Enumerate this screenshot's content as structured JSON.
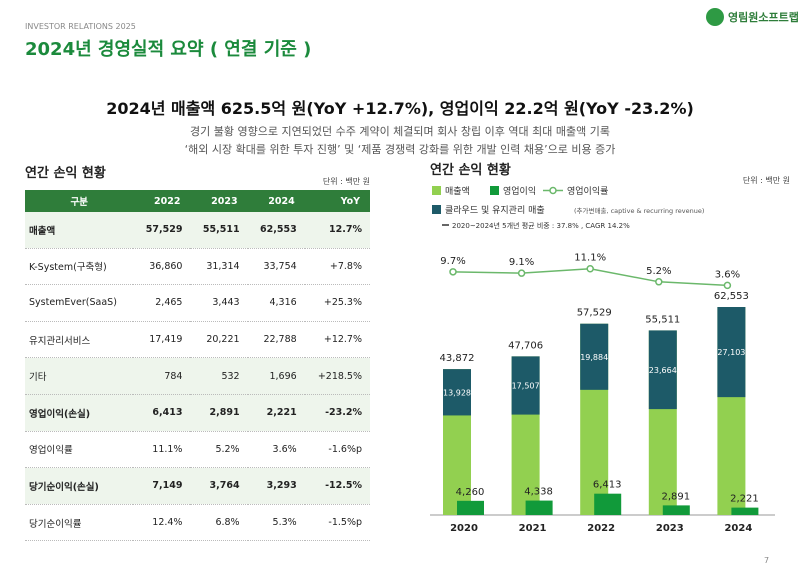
{
  "header": {
    "subtitle": "INVESTOR RELATIONS 2025",
    "title": "2024년 경영실적 요약 ( 연결 기준 )",
    "logo": "영림원소프트랩"
  },
  "summary": {
    "headline": "2024년 매출액 625.5억 원(YoY +12.7%), 영업이익 22.2억 원(YoY -23.2%)",
    "lines": [
      "경기 불황 영향으로 지연되었던 수주 계약이 체결되며 회사 창립 이후 역대 최대 매출액 기록",
      "‘해외 시장 확대를 위한 투자 진행’ 및 ‘제품 경쟁력 강화를 위한 개발 인력 채용’으로 비용 증가"
    ]
  },
  "table": {
    "title": "연간 손익 현황",
    "unit": "단위 : 백만 원",
    "header": [
      "구분",
      "2022",
      "2023",
      "2024",
      "YoY"
    ],
    "rows": [
      [
        "매출액",
        "57,529",
        "55,511",
        "62,553",
        "12.7%"
      ],
      [
        "K-System(구축형)",
        "36,860",
        "31,314",
        "33,754",
        "+7.8%"
      ],
      [
        "SystemEver(SaaS)",
        "2,465",
        "3,443",
        "4,316",
        "+25.3%"
      ],
      [
        "유지관리서비스",
        "17,419",
        "20,221",
        "22,788",
        "+12.7%"
      ],
      [
        "기타",
        "784",
        "532",
        "1,696",
        "+218.5%"
      ],
      [
        "영업이익(손실)",
        "6,413",
        "2,891",
        "2,221",
        "-23.2%"
      ],
      [
        "영업이익률",
        "11.1%",
        "5.2%",
        "3.6%",
        "-1.6%p"
      ],
      [
        "당기순이익(손실)",
        "7,149",
        "3,764",
        "3,293",
        "-12.5%"
      ],
      [
        "당기순이익률",
        "12.4%",
        "6.8%",
        "5.3%",
        "-1.5%p"
      ]
    ]
  },
  "chart_data": {
    "type": "bar",
    "title": "연간 손익 현황",
    "unit": "단위 : 백만 원",
    "categories": [
      "2020",
      "2021",
      "2022",
      "2023",
      "2024"
    ],
    "series": [
      {
        "name": "매출액",
        "color": "#92d050",
        "values": [
          43872,
          47706,
          57529,
          55511,
          62553
        ],
        "value_labels": [
          "43,872",
          "47,706",
          "57,529",
          "55,511",
          "62,553"
        ]
      },
      {
        "name": "영업이익",
        "color": "#119a3a",
        "values": [
          4260,
          4338,
          6413,
          2891,
          2221
        ],
        "value_labels": [
          "4,260",
          "4,338",
          "6,413",
          "2,891",
          "2,221"
        ]
      },
      {
        "name": "영업이익률",
        "color": "#6bb86b",
        "axis": "y2",
        "values": [
          9.7,
          9.1,
          11.1,
          5.2,
          3.6
        ],
        "value_labels": [
          "9.7%",
          "9.1%",
          "11.1%",
          "5.2%",
          "3.6%"
        ]
      },
      {
        "name": "클라우드 및 유지관리 매출",
        "detail": "(추가변매출, captive & recurring revenue)",
        "stat": "2020~2024년 5개년 평균 비중 : 37.8% , CAGR 14.2%",
        "color": "#1d5a68",
        "values": [
          13928,
          17507,
          19884,
          23664,
          27103
        ],
        "value_labels": [
          "13,928",
          "17,507",
          "19,884",
          "23,664",
          "27,103"
        ]
      }
    ],
    "ylim": [
      0,
      80000
    ],
    "y2lim": [
      -100,
      20
    ]
  },
  "page_number": "7"
}
